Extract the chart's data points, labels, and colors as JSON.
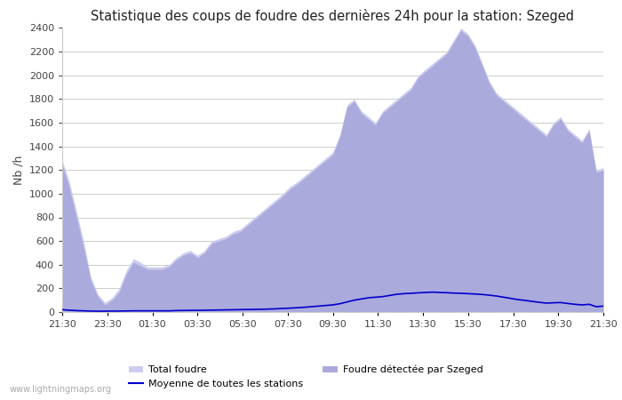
{
  "title": "Statistique des coups de foudre des dernières 24h pour la station: Szeged",
  "ylabel": "Nb /h",
  "ylim": [
    0,
    2400
  ],
  "background_color": "#ffffff",
  "grid_color": "#cccccc",
  "watermark": "www.lightningmaps.org",
  "x_tick_labels": [
    "21:30",
    "23:30",
    "01:30",
    "03:30",
    "05:30",
    "07:30",
    "09:30",
    "11:30",
    "13:30",
    "15:30",
    "17:30",
    "19:30",
    "21:30"
  ],
  "total_foudre_color": "#ccccee",
  "szeged_color": "#aaaadd",
  "mean_line_color": "#0000cc",
  "total_foudre": [
    1280,
    1100,
    850,
    600,
    300,
    150,
    80,
    120,
    200,
    350,
    450,
    420,
    380,
    380,
    380,
    400,
    460,
    500,
    520,
    480,
    520,
    600,
    620,
    640,
    680,
    700,
    750,
    800,
    850,
    900,
    950,
    1000,
    1060,
    1100,
    1150,
    1200,
    1250,
    1300,
    1350,
    1500,
    1750,
    1800,
    1700,
    1650,
    1600,
    1700,
    1750,
    1800,
    1850,
    1900,
    2000,
    2050,
    2100,
    2150,
    2200,
    2300,
    2400,
    2350,
    2250,
    2100,
    1950,
    1850,
    1800,
    1750,
    1700,
    1650,
    1600,
    1550,
    1500,
    1600,
    1650,
    1550,
    1500,
    1450,
    1550,
    1200,
    1220
  ],
  "szeged_foudre": [
    1250,
    1050,
    800,
    550,
    270,
    130,
    60,
    100,
    170,
    320,
    420,
    390,
    360,
    360,
    360,
    380,
    440,
    480,
    500,
    460,
    500,
    580,
    600,
    620,
    660,
    680,
    730,
    780,
    830,
    880,
    930,
    980,
    1040,
    1080,
    1130,
    1180,
    1230,
    1280,
    1330,
    1480,
    1730,
    1780,
    1680,
    1630,
    1580,
    1680,
    1730,
    1780,
    1830,
    1880,
    1980,
    2030,
    2080,
    2130,
    2180,
    2280,
    2380,
    2330,
    2230,
    2080,
    1930,
    1830,
    1780,
    1730,
    1680,
    1630,
    1580,
    1530,
    1480,
    1580,
    1630,
    1530,
    1480,
    1430,
    1530,
    1180,
    1200
  ],
  "mean_line": [
    20,
    15,
    12,
    10,
    8,
    7,
    7,
    8,
    8,
    9,
    10,
    10,
    10,
    10,
    10,
    10,
    12,
    13,
    14,
    14,
    15,
    16,
    17,
    18,
    19,
    20,
    21,
    22,
    23,
    25,
    27,
    30,
    33,
    36,
    40,
    45,
    50,
    55,
    60,
    70,
    85,
    100,
    110,
    120,
    125,
    130,
    140,
    150,
    155,
    158,
    162,
    165,
    168,
    165,
    163,
    160,
    158,
    155,
    152,
    148,
    142,
    135,
    125,
    115,
    105,
    98,
    90,
    82,
    75,
    78,
    80,
    72,
    65,
    60,
    65,
    45,
    50
  ]
}
